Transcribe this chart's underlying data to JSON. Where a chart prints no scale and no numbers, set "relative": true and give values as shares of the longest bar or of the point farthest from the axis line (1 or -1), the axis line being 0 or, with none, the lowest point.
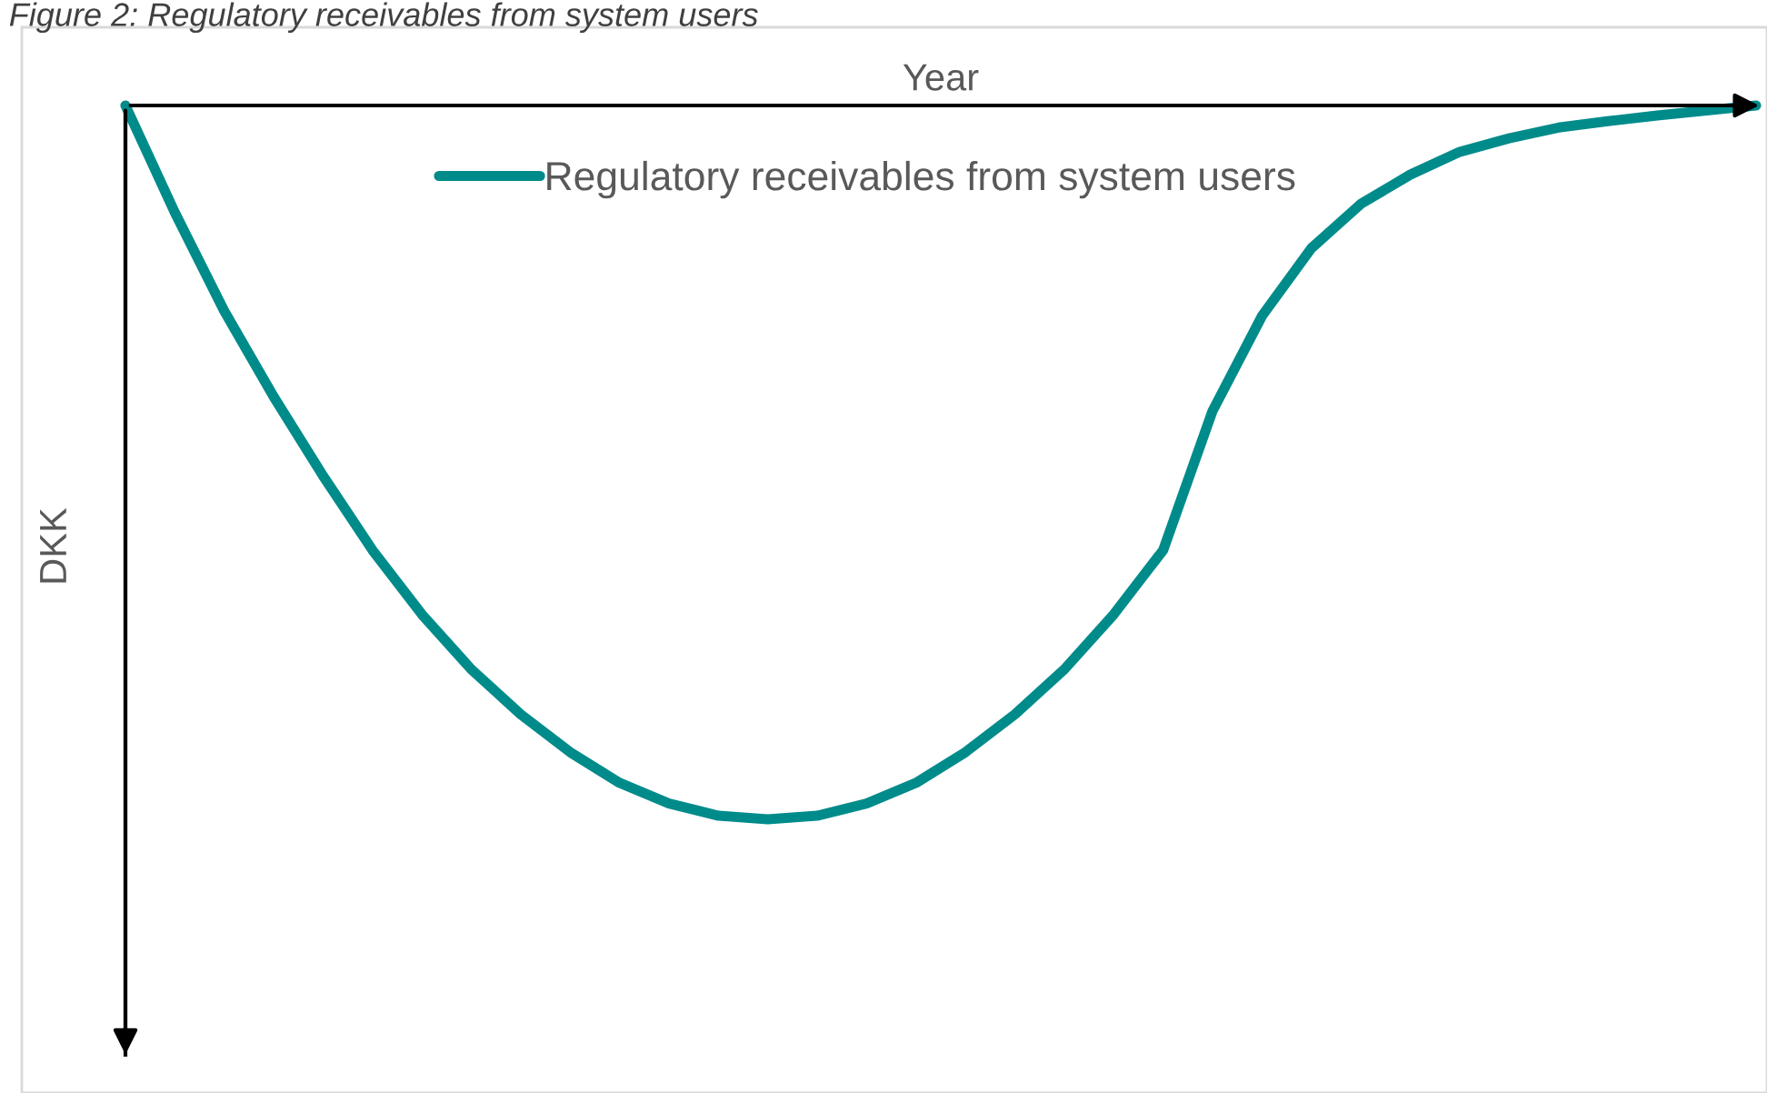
{
  "chart_data": {
    "type": "line",
    "title": "Figure 2: Regulatory receivables from system users",
    "xlabel": "Year",
    "ylabel": "DKK",
    "relative": true,
    "legend": "top left",
    "grid": false,
    "categories": [
      null,
      null,
      null,
      null,
      null,
      null,
      null,
      null,
      null,
      null,
      null,
      null,
      null,
      null,
      null,
      null,
      null,
      null,
      null,
      null,
      null,
      null,
      null,
      null,
      null,
      null,
      null,
      null,
      null,
      null,
      null,
      null,
      null,
      null
    ],
    "series": [
      {
        "name": "Regulatory receivables from system users",
        "color": "#008b8b",
        "values": [
          0,
          -0.15,
          -0.288,
          -0.408,
          -0.519,
          -0.623,
          -0.713,
          -0.79,
          -0.853,
          -0.906,
          -0.949,
          -0.978,
          -0.995,
          -1,
          -0.995,
          -0.978,
          -0.949,
          -0.906,
          -0.853,
          -0.79,
          -0.713,
          -0.623,
          -0.428,
          -0.295,
          -0.2,
          -0.138,
          -0.097,
          -0.065,
          -0.046,
          -0.031,
          -0.022,
          -0.014,
          -0.007,
          0
        ]
      }
    ]
  }
}
